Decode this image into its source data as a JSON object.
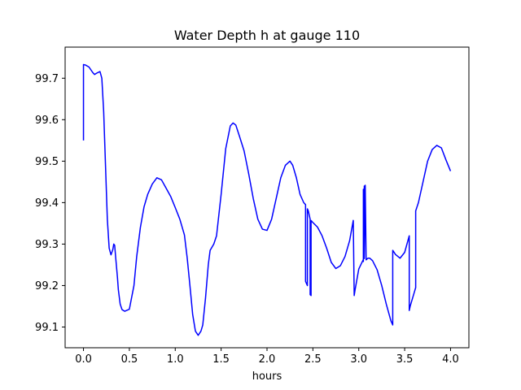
{
  "chart_data": {
    "type": "line",
    "title": "Water Depth h at gauge 110",
    "xlabel": "hours",
    "ylabel": "",
    "xlim": [
      -0.2,
      4.2
    ],
    "ylim": [
      99.05,
      99.775
    ],
    "grid": false,
    "x_ticks": [
      0.0,
      0.5,
      1.0,
      1.5,
      2.0,
      2.5,
      3.0,
      3.5,
      4.0
    ],
    "x_tick_labels": [
      "0.0",
      "0.5",
      "1.0",
      "1.5",
      "2.0",
      "2.5",
      "3.0",
      "3.5",
      "4.0"
    ],
    "y_ticks": [
      99.1,
      99.2,
      99.3,
      99.4,
      99.5,
      99.6,
      99.7
    ],
    "y_tick_labels": [
      "99.1",
      "99.2",
      "99.3",
      "99.4",
      "99.5",
      "99.6",
      "99.7"
    ],
    "series": [
      {
        "color": "#0000ff",
        "x": [
          0.0,
          0.0,
          0.02,
          0.06,
          0.1,
          0.12,
          0.15,
          0.18,
          0.2,
          0.22,
          0.24,
          0.26,
          0.28,
          0.3,
          0.32,
          0.33,
          0.34,
          0.35,
          0.36,
          0.37,
          0.38,
          0.4,
          0.42,
          0.45,
          0.5,
          0.55,
          0.58,
          0.62,
          0.66,
          0.7,
          0.75,
          0.8,
          0.85,
          0.9,
          0.95,
          1.0,
          1.05,
          1.1,
          1.13,
          1.16,
          1.19,
          1.22,
          1.25,
          1.28,
          1.3,
          1.33,
          1.36,
          1.38,
          1.42,
          1.45,
          1.5,
          1.55,
          1.6,
          1.63,
          1.66,
          1.7,
          1.75,
          1.8,
          1.85,
          1.9,
          1.95,
          2.0,
          2.05,
          2.1,
          2.15,
          2.2,
          2.25,
          2.28,
          2.32,
          2.36,
          2.4,
          2.42,
          2.42,
          2.43,
          2.44,
          2.44,
          2.45,
          2.46,
          2.47,
          2.47,
          2.48,
          2.48,
          2.5,
          2.55,
          2.6,
          2.65,
          2.7,
          2.75,
          2.8,
          2.85,
          2.9,
          2.94,
          2.95,
          2.96,
          3.0,
          3.05,
          3.05,
          3.05,
          3.06,
          3.06,
          3.07,
          3.08,
          3.1,
          3.12,
          3.15,
          3.2,
          3.25,
          3.3,
          3.35,
          3.37,
          3.37,
          3.4,
          3.45,
          3.5,
          3.55,
          3.55,
          3.56,
          3.58,
          3.6,
          3.62,
          3.62,
          3.65,
          3.7,
          3.75,
          3.8,
          3.85,
          3.9,
          3.95,
          4.0
        ],
        "y": [
          99.55,
          99.733,
          99.732,
          99.727,
          99.714,
          99.709,
          99.713,
          99.716,
          99.7,
          99.62,
          99.49,
          99.36,
          99.29,
          99.274,
          99.287,
          99.3,
          99.297,
          99.27,
          99.245,
          99.22,
          99.19,
          99.155,
          99.142,
          99.138,
          99.143,
          99.2,
          99.27,
          99.34,
          99.39,
          99.42,
          99.445,
          99.46,
          99.455,
          99.435,
          99.415,
          99.388,
          99.36,
          99.322,
          99.267,
          99.2,
          99.13,
          99.09,
          99.08,
          99.09,
          99.105,
          99.17,
          99.25,
          99.285,
          99.3,
          99.32,
          99.42,
          99.53,
          99.585,
          99.592,
          99.587,
          99.56,
          99.525,
          99.47,
          99.41,
          99.36,
          99.336,
          99.333,
          99.36,
          99.41,
          99.46,
          99.49,
          99.5,
          99.49,
          99.46,
          99.42,
          99.4,
          99.395,
          99.21,
          99.205,
          99.2,
          99.385,
          99.38,
          99.37,
          99.36,
          99.178,
          99.176,
          99.357,
          99.352,
          99.341,
          99.32,
          99.29,
          99.256,
          99.241,
          99.248,
          99.27,
          99.308,
          99.357,
          99.176,
          99.19,
          99.24,
          99.263,
          99.432,
          99.258,
          99.44,
          99.265,
          99.442,
          99.262,
          99.266,
          99.266,
          99.26,
          99.238,
          99.2,
          99.155,
          99.115,
          99.105,
          99.285,
          99.275,
          99.266,
          99.28,
          99.32,
          99.14,
          99.15,
          99.165,
          99.18,
          99.195,
          99.38,
          99.4,
          99.45,
          99.5,
          99.528,
          99.538,
          99.532,
          99.503,
          99.476
        ]
      }
    ]
  }
}
